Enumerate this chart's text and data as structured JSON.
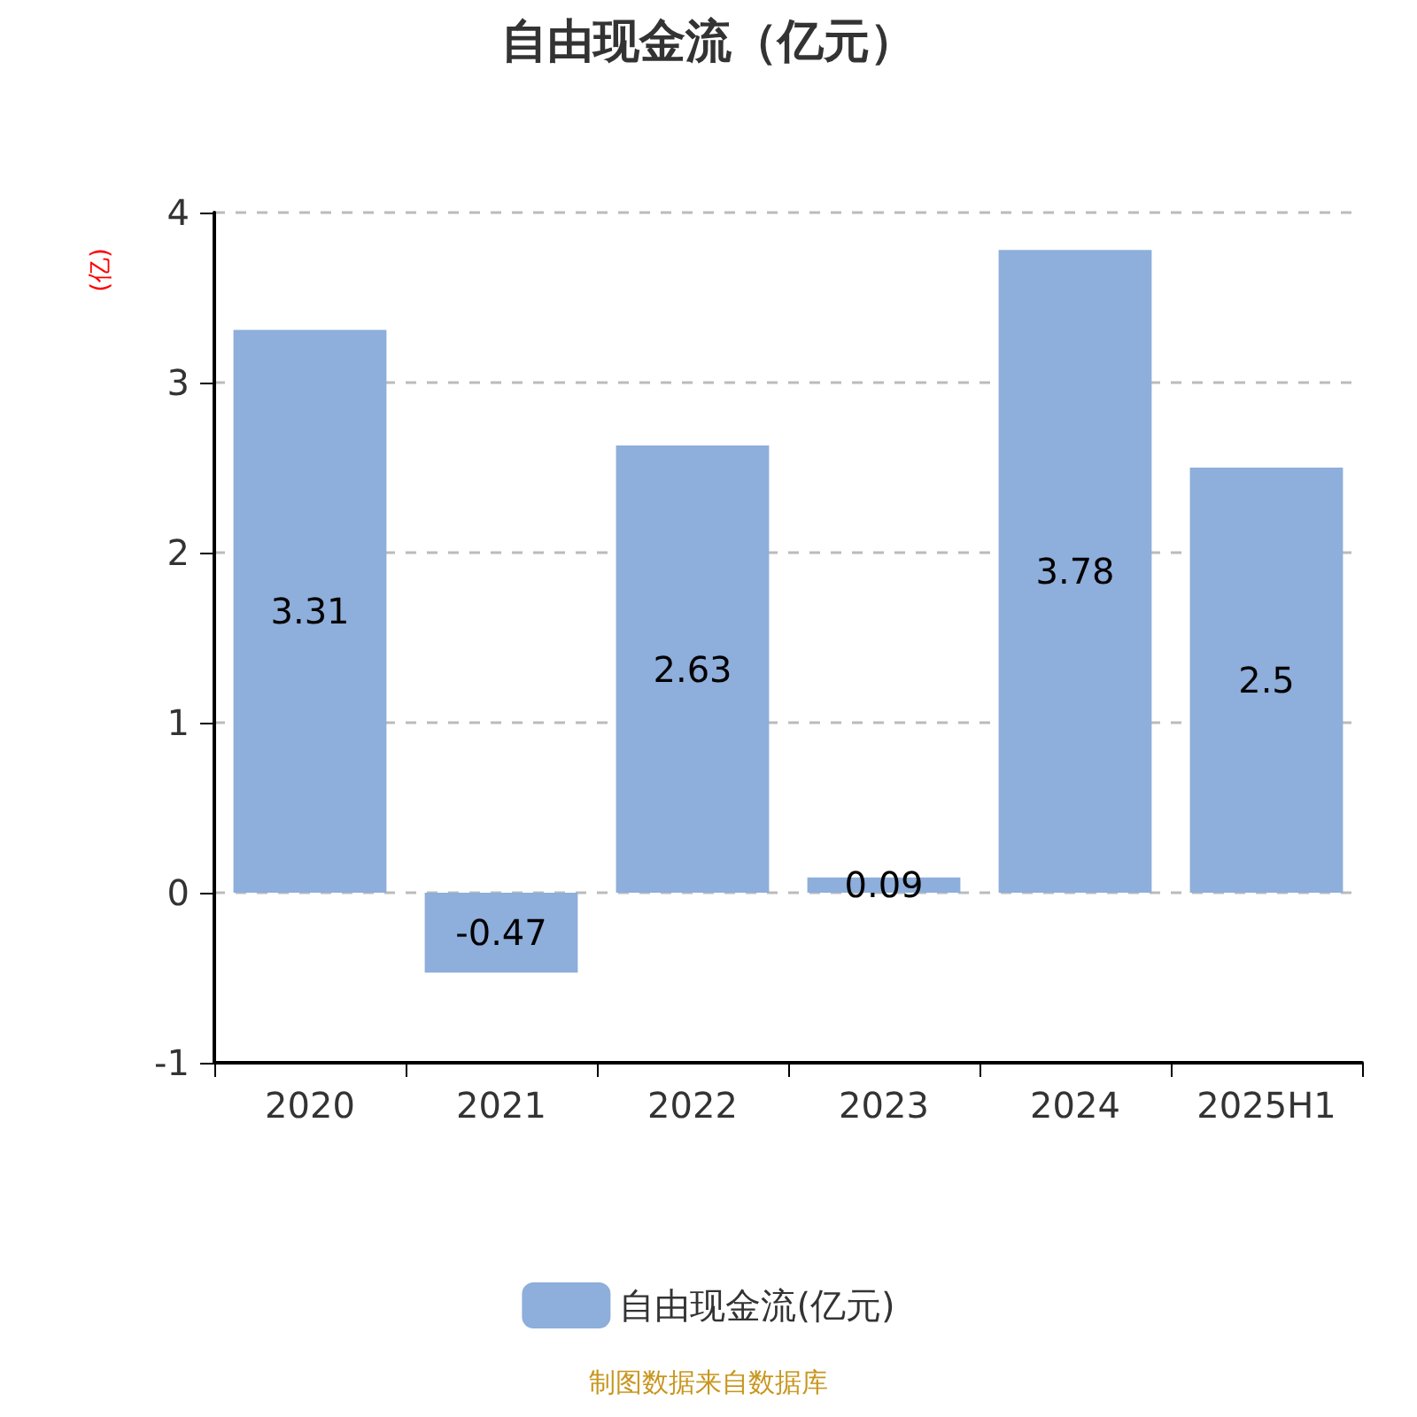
{
  "chart_data": {
    "type": "bar",
    "title": "自由现金流（亿元）",
    "ylabel": "(亿)",
    "categories": [
      "2020",
      "2021",
      "2022",
      "2023",
      "2024",
      "2025H1"
    ],
    "series": [
      {
        "name": "自由现金流(亿元)",
        "color": "#8eaedb",
        "values": [
          3.31,
          -0.47,
          2.63,
          0.09,
          3.78,
          2.5
        ]
      }
    ],
    "ylim": [
      -1,
      4
    ],
    "yticks": [
      -1,
      0,
      1,
      2,
      3,
      4
    ],
    "grid": "y",
    "legend": "bottom",
    "data_labels": true,
    "annotations": [
      "制图数据来自数据库"
    ]
  }
}
